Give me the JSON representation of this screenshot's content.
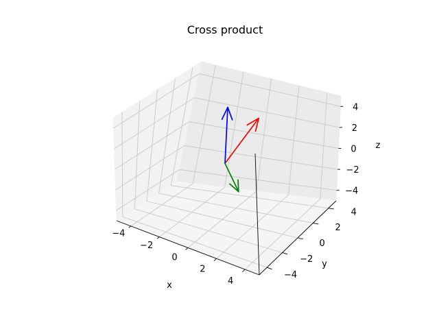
{
  "chart_data": {
    "type": "quiver3d",
    "title": "Cross product",
    "xlabel": "x",
    "ylabel": "y",
    "zlabel": "z",
    "xlim": [
      -5,
      5
    ],
    "ylim": [
      -5,
      5
    ],
    "zlim": [
      -5,
      5
    ],
    "xticks": [
      "−4",
      "−2",
      "0",
      "2",
      "4"
    ],
    "yticks": [
      "−4",
      "−2",
      "0",
      "2",
      "4"
    ],
    "zticks": [
      "−4",
      "−2",
      "0",
      "2",
      "4"
    ],
    "grid": true,
    "vectors": [
      {
        "color": "#ff0000",
        "origin": [
          0,
          0,
          0
        ],
        "vec": [
          0,
          4,
          2
        ]
      },
      {
        "color": "#0000ff",
        "origin": [
          0,
          0,
          0
        ],
        "vec": [
          0,
          0,
          5
        ]
      },
      {
        "color": "#008000",
        "origin": [
          0,
          0,
          0
        ],
        "vec": [
          1,
          0,
          -2.2
        ]
      }
    ]
  }
}
